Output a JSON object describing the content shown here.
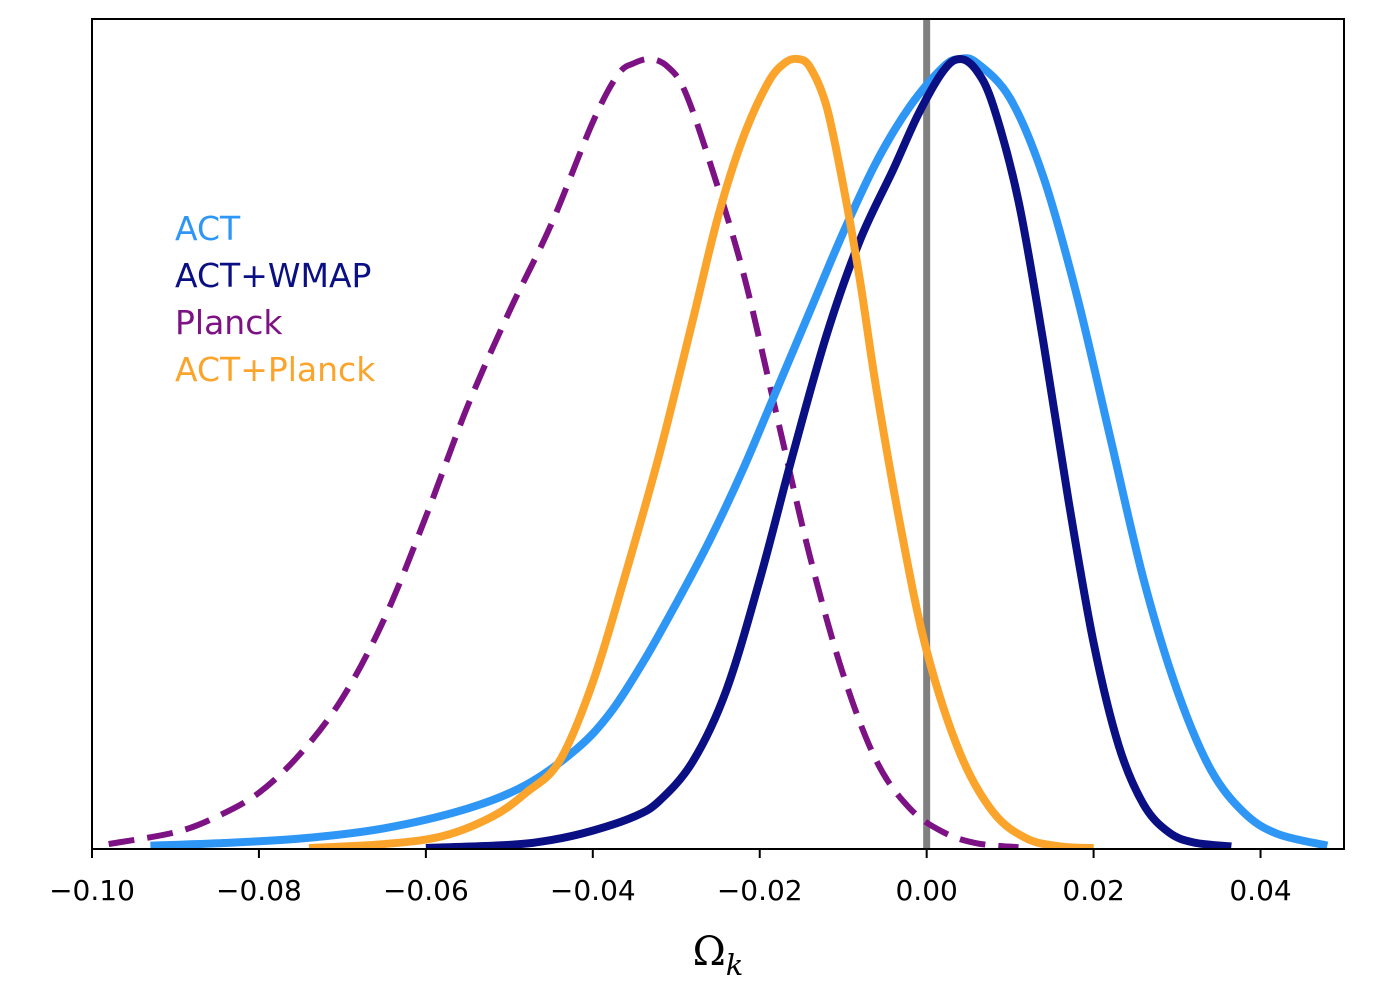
{
  "chart_data": {
    "type": "line",
    "xlabel": "Ωk",
    "ylabel": "",
    "xlim": [
      -0.1,
      0.05
    ],
    "ylim": [
      0,
      1.05
    ],
    "x_ticks": [
      -0.1,
      -0.08,
      -0.06,
      -0.04,
      -0.02,
      0.0,
      0.02,
      0.04
    ],
    "x_tick_labels": [
      "−0.10",
      "−0.08",
      "−0.06",
      "−0.04",
      "−0.02",
      "0.00",
      "0.02",
      "0.04"
    ],
    "grid": false,
    "legend_placement": "upper-left",
    "reference_line": {
      "x": 0.0,
      "color": "#808080"
    },
    "series": [
      {
        "name": "ACT",
        "color": "#2e96f5",
        "dash": "solid",
        "x": [
          -0.093,
          -0.085,
          -0.075,
          -0.065,
          -0.055,
          -0.048,
          -0.042,
          -0.038,
          -0.034,
          -0.03,
          -0.026,
          -0.022,
          -0.018,
          -0.014,
          -0.01,
          -0.006,
          -0.002,
          0.002,
          0.004,
          0.006,
          0.01,
          0.014,
          0.018,
          0.022,
          0.026,
          0.03,
          0.034,
          0.038,
          0.042,
          0.048
        ],
        "values": [
          0.003,
          0.006,
          0.012,
          0.025,
          0.05,
          0.08,
          0.125,
          0.17,
          0.235,
          0.31,
          0.39,
          0.48,
          0.58,
          0.68,
          0.78,
          0.87,
          0.94,
          0.99,
          1.0,
          0.995,
          0.95,
          0.85,
          0.7,
          0.52,
          0.34,
          0.2,
          0.1,
          0.045,
          0.018,
          0.003
        ]
      },
      {
        "name": "ACT+WMAP",
        "color": "#0a0f84",
        "dash": "solid",
        "x": [
          -0.06,
          -0.05,
          -0.045,
          -0.04,
          -0.035,
          -0.032,
          -0.028,
          -0.024,
          -0.02,
          -0.016,
          -0.012,
          -0.008,
          -0.004,
          -0.001,
          0.002,
          0.004,
          0.006,
          0.008,
          0.011,
          0.014,
          0.017,
          0.02,
          0.023,
          0.026,
          0.029,
          0.032,
          0.0365
        ],
        "values": [
          0.0,
          0.004,
          0.01,
          0.022,
          0.04,
          0.06,
          0.11,
          0.2,
          0.34,
          0.5,
          0.65,
          0.77,
          0.86,
          0.93,
          0.985,
          1.0,
          0.985,
          0.94,
          0.82,
          0.64,
          0.44,
          0.26,
          0.13,
          0.055,
          0.02,
          0.007,
          0.002
        ]
      },
      {
        "name": "Planck",
        "color": "#7d1284",
        "dash": "dashed",
        "x": [
          -0.098,
          -0.09,
          -0.085,
          -0.08,
          -0.075,
          -0.07,
          -0.065,
          -0.06,
          -0.055,
          -0.05,
          -0.045,
          -0.04,
          -0.037,
          -0.035,
          -0.033,
          -0.031,
          -0.029,
          -0.026,
          -0.022,
          -0.018,
          -0.014,
          -0.01,
          -0.006,
          -0.002,
          0.002,
          0.006,
          0.011
        ],
        "values": [
          0.005,
          0.02,
          0.04,
          0.07,
          0.12,
          0.19,
          0.29,
          0.42,
          0.56,
          0.68,
          0.79,
          0.92,
          0.98,
          0.995,
          1.0,
          0.99,
          0.96,
          0.87,
          0.73,
          0.55,
          0.37,
          0.22,
          0.11,
          0.05,
          0.02,
          0.006,
          0.001
        ]
      },
      {
        "name": "ACT+Planck",
        "color": "#fba42c",
        "dash": "solid",
        "x": [
          -0.074,
          -0.065,
          -0.058,
          -0.052,
          -0.048,
          -0.044,
          -0.04,
          -0.036,
          -0.032,
          -0.028,
          -0.025,
          -0.022,
          -0.019,
          -0.017,
          -0.0155,
          -0.014,
          -0.012,
          -0.01,
          -0.008,
          -0.006,
          -0.003,
          0.0,
          0.004,
          0.008,
          0.012,
          0.016,
          0.02
        ],
        "values": [
          0.0,
          0.005,
          0.015,
          0.04,
          0.07,
          0.11,
          0.21,
          0.35,
          0.5,
          0.67,
          0.8,
          0.9,
          0.97,
          0.995,
          1.0,
          0.99,
          0.94,
          0.84,
          0.72,
          0.58,
          0.4,
          0.25,
          0.12,
          0.045,
          0.012,
          0.002,
          0.0
        ]
      }
    ]
  }
}
